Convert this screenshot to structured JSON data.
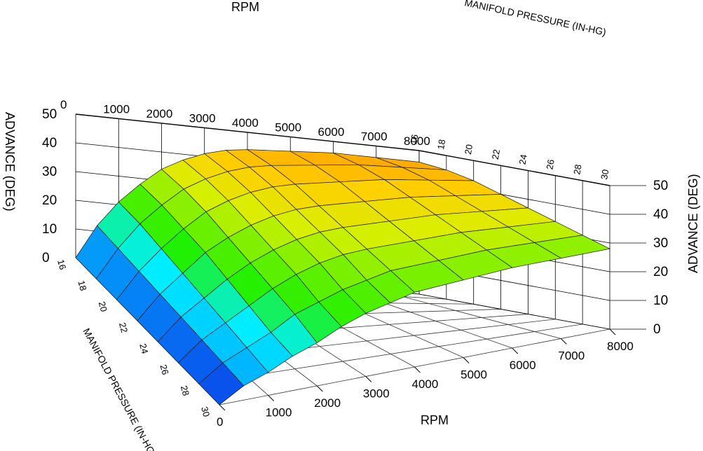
{
  "chart_data": {
    "type": "surface",
    "x_axis": {
      "label": "RPM",
      "ticks": [
        "0",
        "1000",
        "2000",
        "3000",
        "4000",
        "5000",
        "6000",
        "7000",
        "8000"
      ],
      "range": [
        0,
        8000
      ]
    },
    "y_axis": {
      "label": "MANIFOLD PRESSURE (IN-HG)",
      "ticks": [
        "16",
        "18",
        "20",
        "22",
        "24",
        "26",
        "28",
        "30"
      ],
      "range": [
        16,
        30
      ]
    },
    "z_axis": {
      "label": "ADVANCE (DEG)",
      "ticks": [
        "0",
        "10",
        "20",
        "30",
        "40",
        "50"
      ],
      "range": [
        0,
        50
      ]
    },
    "rpm": [
      0,
      500,
      1000,
      1500,
      2000,
      2500,
      3000,
      3500,
      4000,
      5000,
      6000,
      7000,
      8000
    ],
    "manifold_pressure": [
      16,
      18,
      20,
      22,
      24,
      26,
      28,
      30
    ],
    "advance_by_pressure": [
      [
        0,
        12,
        21,
        28,
        34,
        38,
        41,
        43,
        44,
        45,
        46,
        46,
        46
      ],
      [
        0,
        11,
        20,
        27,
        33,
        37,
        40,
        42,
        43,
        44,
        45,
        45,
        45
      ],
      [
        0,
        10,
        18,
        25,
        31,
        35,
        38,
        40,
        41,
        42,
        43,
        43,
        43
      ],
      [
        0,
        9,
        16,
        23,
        28,
        32,
        35,
        37,
        38,
        39,
        40,
        40,
        40
      ],
      [
        0,
        8,
        14,
        20,
        25,
        29,
        32,
        34,
        35,
        36,
        37,
        37,
        37
      ],
      [
        0,
        7,
        12,
        17,
        22,
        26,
        29,
        31,
        32,
        33,
        34,
        34,
        34
      ],
      [
        0,
        6,
        10,
        14,
        19,
        22,
        25,
        27,
        29,
        30,
        31,
        31,
        31
      ],
      [
        0,
        5,
        8,
        12,
        15,
        19,
        22,
        24,
        26,
        27,
        28,
        28,
        28
      ]
    ],
    "colormap": [
      "#1010e0",
      "#00b4ff",
      "#00f0ff",
      "#20f000",
      "#70f000",
      "#d8f000",
      "#ffd000",
      "#ff9800"
    ]
  }
}
